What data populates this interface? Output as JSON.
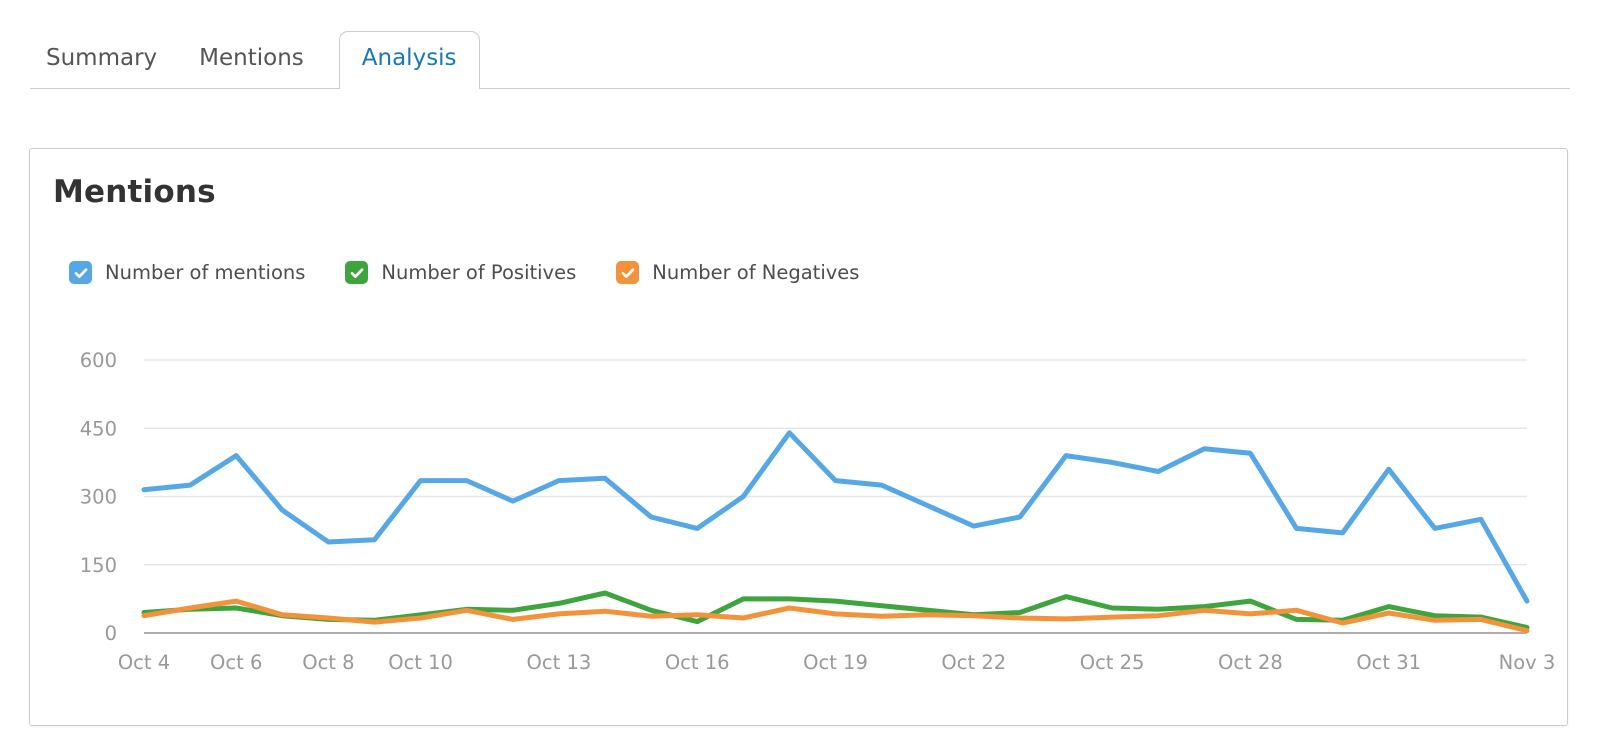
{
  "tabs": [
    {
      "label": "Summary",
      "active": false
    },
    {
      "label": "Mentions",
      "active": false
    },
    {
      "label": "Analysis",
      "active": true
    }
  ],
  "active_tab_color": "#1878b8",
  "card": {
    "title": "Mentions"
  },
  "legend": [
    {
      "label": "Number of mentions",
      "color": "#56a7e5",
      "checked": true
    },
    {
      "label": "Number of Positives",
      "color": "#3ea43e",
      "checked": true
    },
    {
      "label": "Number of Negatives",
      "color": "#f2923a",
      "checked": true
    }
  ],
  "chart_data": {
    "type": "line",
    "title": "Mentions",
    "x": [
      "Oct 4",
      "Oct 5",
      "Oct 6",
      "Oct 7",
      "Oct 8",
      "Oct 9",
      "Oct 10",
      "Oct 11",
      "Oct 12",
      "Oct 13",
      "Oct 14",
      "Oct 15",
      "Oct 16",
      "Oct 17",
      "Oct 18",
      "Oct 19",
      "Oct 20",
      "Oct 21",
      "Oct 22",
      "Oct 23",
      "Oct 24",
      "Oct 25",
      "Oct 26",
      "Oct 27",
      "Oct 28",
      "Oct 29",
      "Oct 30",
      "Oct 31",
      "Nov 1",
      "Nov 2",
      "Nov 3"
    ],
    "series": [
      {
        "name": "Number of mentions",
        "color": "#56a7e5",
        "values": [
          315,
          325,
          390,
          270,
          200,
          205,
          335,
          335,
          290,
          335,
          340,
          255,
          230,
          300,
          440,
          335,
          325,
          280,
          235,
          255,
          390,
          375,
          355,
          405,
          395,
          230,
          220,
          360,
          230,
          250,
          70
        ]
      },
      {
        "name": "Number of Positives",
        "color": "#3ea43e",
        "values": [
          45,
          52,
          55,
          38,
          30,
          28,
          40,
          52,
          50,
          65,
          88,
          50,
          25,
          75,
          75,
          70,
          60,
          50,
          40,
          45,
          80,
          55,
          52,
          58,
          70,
          30,
          28,
          58,
          38,
          35,
          12
        ]
      },
      {
        "name": "Number of Negatives",
        "color": "#f2923a",
        "values": [
          38,
          55,
          70,
          40,
          33,
          24,
          33,
          50,
          30,
          42,
          48,
          37,
          40,
          33,
          55,
          42,
          37,
          40,
          38,
          33,
          31,
          35,
          38,
          50,
          42,
          50,
          22,
          44,
          28,
          30,
          5
        ]
      }
    ],
    "ylim": [
      0,
      600
    ],
    "yticks": [
      0,
      150,
      300,
      450,
      600
    ],
    "xtick_labels": [
      "Oct 4",
      "Oct 6",
      "Oct 8",
      "Oct 10",
      "Oct 13",
      "Oct 16",
      "Oct 19",
      "Oct 22",
      "Oct 25",
      "Oct 28",
      "Oct 31",
      "Nov 3"
    ],
    "xtick_indices": [
      0,
      2,
      4,
      6,
      9,
      12,
      15,
      18,
      21,
      24,
      27,
      30
    ],
    "grid": true,
    "legend_position": "top-left"
  }
}
